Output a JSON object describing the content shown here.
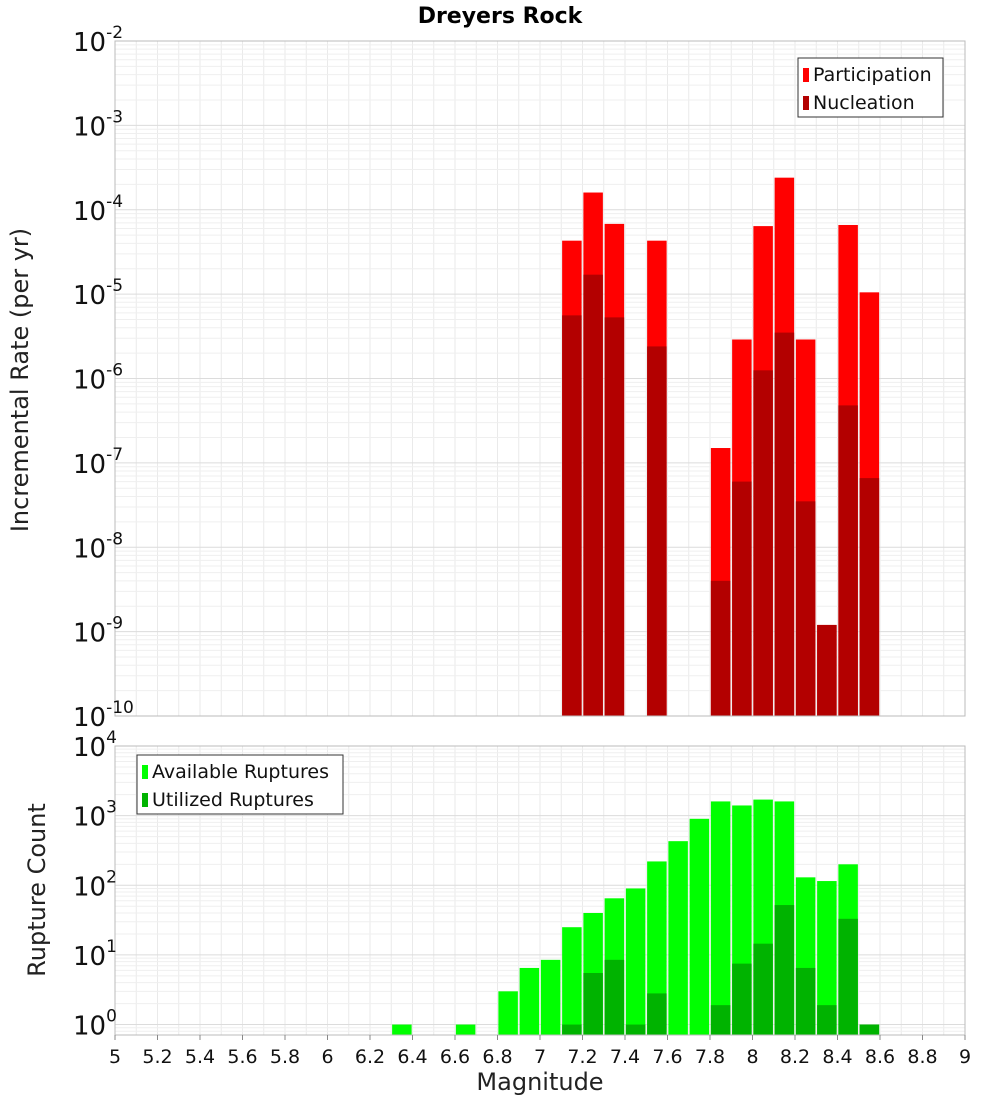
{
  "chart_data": [
    {
      "type": "bar",
      "title": "Dreyers Rock",
      "xlabel": "",
      "ylabel": "Incremental Rate (per yr)",
      "yscale": "log",
      "ylim_exp": [
        -10,
        -2
      ],
      "xlim": [
        5,
        9
      ],
      "grid": true,
      "legend_position": "top-right",
      "tick_labels": [
        {
          "base": "10",
          "exp": "-10"
        },
        {
          "base": "10",
          "exp": "-9"
        },
        {
          "base": "10",
          "exp": "-8"
        },
        {
          "base": "10",
          "exp": "-7"
        },
        {
          "base": "10",
          "exp": "-6"
        },
        {
          "base": "10",
          "exp": "-5"
        },
        {
          "base": "10",
          "exp": "-4"
        },
        {
          "base": "10",
          "exp": "-3"
        },
        {
          "base": "10",
          "exp": "-2"
        }
      ],
      "series": [
        {
          "name": "Participation",
          "color": "#ff0000",
          "points": [
            [
              7.15,
              4.3e-05
            ],
            [
              7.25,
              0.00016
            ],
            [
              7.35,
              6.8e-05
            ],
            [
              7.55,
              4.3e-05
            ],
            [
              7.85,
              1.5e-07
            ],
            [
              7.95,
              2.9e-06
            ],
            [
              8.05,
              6.4e-05
            ],
            [
              8.15,
              0.00024
            ],
            [
              8.25,
              2.9e-06
            ],
            [
              8.35,
              1.2e-09
            ],
            [
              8.45,
              6.6e-05
            ],
            [
              8.55,
              1.05e-05
            ]
          ]
        },
        {
          "name": "Nucleation",
          "color": "#b30000",
          "points": [
            [
              7.15,
              5.6e-06
            ],
            [
              7.25,
              1.7e-05
            ],
            [
              7.35,
              5.3e-06
            ],
            [
              7.55,
              2.4e-06
            ],
            [
              7.85,
              4e-09
            ],
            [
              7.95,
              6e-08
            ],
            [
              8.05,
              1.25e-06
            ],
            [
              8.15,
              3.5e-06
            ],
            [
              8.25,
              3.5e-08
            ],
            [
              8.35,
              1.2e-09
            ],
            [
              8.45,
              4.8e-07
            ],
            [
              8.55,
              6.6e-08
            ]
          ]
        }
      ]
    },
    {
      "type": "bar",
      "title": "",
      "xlabel": "Magnitude",
      "ylabel": "Rupture Count",
      "yscale": "log",
      "ylim_exp": [
        -0.15,
        4
      ],
      "xlim": [
        5,
        9
      ],
      "grid": true,
      "legend_position": "top-left",
      "x_ticks": [
        "5",
        "5.2",
        "5.4",
        "5.6",
        "5.8",
        "6",
        "6.2",
        "6.4",
        "6.6",
        "6.8",
        "7",
        "7.2",
        "7.4",
        "7.6",
        "7.8",
        "8",
        "8.2",
        "8.4",
        "8.6",
        "8.8",
        "9"
      ],
      "tick_labels": [
        {
          "base": "10",
          "exp": "0"
        },
        {
          "base": "10",
          "exp": "1"
        },
        {
          "base": "10",
          "exp": "2"
        },
        {
          "base": "10",
          "exp": "3"
        },
        {
          "base": "10",
          "exp": "4"
        }
      ],
      "series": [
        {
          "name": "Available Ruptures",
          "color": "#00ff00",
          "points": [
            [
              6.35,
              1
            ],
            [
              6.65,
              1
            ],
            [
              6.85,
              3
            ],
            [
              6.95,
              6.5
            ],
            [
              7.05,
              8.5
            ],
            [
              7.15,
              25
            ],
            [
              7.25,
              40
            ],
            [
              7.35,
              65
            ],
            [
              7.45,
              90
            ],
            [
              7.55,
              220
            ],
            [
              7.65,
              430
            ],
            [
              7.75,
              900
            ],
            [
              7.85,
              1600
            ],
            [
              7.95,
              1400
            ],
            [
              8.05,
              1700
            ],
            [
              8.15,
              1600
            ],
            [
              8.25,
              130
            ],
            [
              8.35,
              115
            ],
            [
              8.45,
              200
            ],
            [
              8.55,
              1
            ]
          ]
        },
        {
          "name": "Utilized Ruptures",
          "color": "#00b300",
          "points": [
            [
              7.15,
              1
            ],
            [
              7.25,
              5.5
            ],
            [
              7.35,
              8.5
            ],
            [
              7.45,
              1
            ],
            [
              7.55,
              2.8
            ],
            [
              7.85,
              1.9
            ],
            [
              7.95,
              7.5
            ],
            [
              8.05,
              14.5
            ],
            [
              8.15,
              52
            ],
            [
              8.25,
              6.5
            ],
            [
              8.35,
              1.9
            ],
            [
              8.45,
              33
            ],
            [
              8.55,
              1
            ]
          ]
        }
      ]
    }
  ]
}
